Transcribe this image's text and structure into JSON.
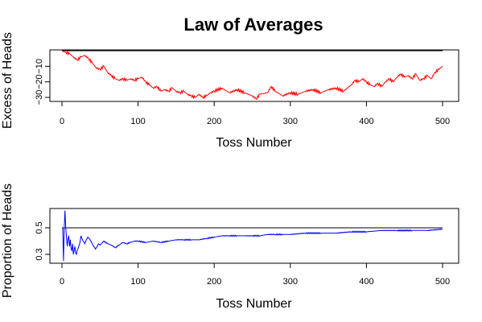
{
  "chart_data": [
    {
      "type": "line",
      "title": "Law of Averages",
      "xlabel": "Toss Number",
      "ylabel": "Excess of Heads",
      "xlim": [
        0,
        500
      ],
      "ylim": [
        -32,
        0
      ],
      "xticks": [
        "0",
        "100",
        "200",
        "300",
        "400",
        "500"
      ],
      "yticks": [
        "−10",
        "−20",
        "−30"
      ],
      "reference_line": 0,
      "reference_color": "#000000",
      "series_color": "#ff0000",
      "keypoints": [
        [
          1,
          -1
        ],
        [
          3,
          0
        ],
        [
          5,
          -1
        ],
        [
          10,
          -2
        ],
        [
          15,
          -4
        ],
        [
          20,
          -6
        ],
        [
          25,
          -4
        ],
        [
          30,
          -3
        ],
        [
          35,
          -5
        ],
        [
          40,
          -8
        ],
        [
          45,
          -11
        ],
        [
          50,
          -12
        ],
        [
          55,
          -10
        ],
        [
          60,
          -14
        ],
        [
          65,
          -16
        ],
        [
          70,
          -18
        ],
        [
          75,
          -19
        ],
        [
          80,
          -18
        ],
        [
          85,
          -19
        ],
        [
          90,
          -18
        ],
        [
          95,
          -19
        ],
        [
          100,
          -18
        ],
        [
          105,
          -17
        ],
        [
          110,
          -20
        ],
        [
          115,
          -22
        ],
        [
          120,
          -24
        ],
        [
          125,
          -23
        ],
        [
          130,
          -26
        ],
        [
          135,
          -25
        ],
        [
          140,
          -26
        ],
        [
          145,
          -24
        ],
        [
          150,
          -26
        ],
        [
          155,
          -27
        ],
        [
          160,
          -26
        ],
        [
          165,
          -28
        ],
        [
          170,
          -29
        ],
        [
          175,
          -30
        ],
        [
          180,
          -28
        ],
        [
          185,
          -30
        ],
        [
          190,
          -29
        ],
        [
          195,
          -27
        ],
        [
          200,
          -26
        ],
        [
          210,
          -24
        ],
        [
          220,
          -27
        ],
        [
          230,
          -25
        ],
        [
          240,
          -27
        ],
        [
          250,
          -29
        ],
        [
          255,
          -31
        ],
        [
          260,
          -28
        ],
        [
          270,
          -27
        ],
        [
          275,
          -23
        ],
        [
          280,
          -26
        ],
        [
          290,
          -29
        ],
        [
          300,
          -27
        ],
        [
          310,
          -28
        ],
        [
          320,
          -26
        ],
        [
          330,
          -25
        ],
        [
          340,
          -27
        ],
        [
          350,
          -25
        ],
        [
          360,
          -24
        ],
        [
          370,
          -26
        ],
        [
          380,
          -22
        ],
        [
          385,
          -19
        ],
        [
          390,
          -20
        ],
        [
          395,
          -18
        ],
        [
          400,
          -20
        ],
        [
          405,
          -22
        ],
        [
          410,
          -23
        ],
        [
          415,
          -21
        ],
        [
          420,
          -23
        ],
        [
          425,
          -20
        ],
        [
          430,
          -18
        ],
        [
          435,
          -20
        ],
        [
          440,
          -17
        ],
        [
          445,
          -15
        ],
        [
          450,
          -17
        ],
        [
          455,
          -16
        ],
        [
          460,
          -18
        ],
        [
          465,
          -15
        ],
        [
          470,
          -19
        ],
        [
          475,
          -18
        ],
        [
          480,
          -16
        ],
        [
          485,
          -18
        ],
        [
          490,
          -14
        ],
        [
          495,
          -12
        ],
        [
          500,
          -10
        ]
      ]
    },
    {
      "type": "line",
      "title": "",
      "xlabel": "Toss Number",
      "ylabel": "Proportion of Heads",
      "xlim": [
        0,
        500
      ],
      "ylim": [
        0.24,
        0.65
      ],
      "xticks": [
        "0",
        "100",
        "200",
        "300",
        "400",
        "500"
      ],
      "yticks": [
        "0.3",
        "0.5"
      ],
      "reference_line": 0.5,
      "reference_color": "#000000",
      "series_color": "#0000ff",
      "keypoints": [
        [
          1,
          0.5
        ],
        [
          2,
          0.25
        ],
        [
          3,
          0.5
        ],
        [
          4,
          0.63
        ],
        [
          5,
          0.5
        ],
        [
          6,
          0.42
        ],
        [
          7,
          0.36
        ],
        [
          8,
          0.42
        ],
        [
          9,
          0.44
        ],
        [
          10,
          0.36
        ],
        [
          11,
          0.41
        ],
        [
          12,
          0.34
        ],
        [
          13,
          0.33
        ],
        [
          14,
          0.38
        ],
        [
          15,
          0.3
        ],
        [
          16,
          0.33
        ],
        [
          17,
          0.36
        ],
        [
          18,
          0.31
        ],
        [
          19,
          0.3
        ],
        [
          20,
          0.33
        ],
        [
          22,
          0.36
        ],
        [
          24,
          0.4
        ],
        [
          25,
          0.44
        ],
        [
          27,
          0.41
        ],
        [
          30,
          0.38
        ],
        [
          32,
          0.41
        ],
        [
          34,
          0.43
        ],
        [
          36,
          0.42
        ],
        [
          38,
          0.4
        ],
        [
          40,
          0.38
        ],
        [
          42,
          0.36
        ],
        [
          44,
          0.34
        ],
        [
          46,
          0.36
        ],
        [
          48,
          0.38
        ],
        [
          50,
          0.37
        ],
        [
          55,
          0.4
        ],
        [
          60,
          0.38
        ],
        [
          65,
          0.37
        ],
        [
          70,
          0.35
        ],
        [
          75,
          0.37
        ],
        [
          80,
          0.39
        ],
        [
          85,
          0.38
        ],
        [
          90,
          0.39
        ],
        [
          95,
          0.4
        ],
        [
          100,
          0.4
        ],
        [
          110,
          0.39
        ],
        [
          120,
          0.4
        ],
        [
          130,
          0.39
        ],
        [
          140,
          0.4
        ],
        [
          150,
          0.41
        ],
        [
          160,
          0.41
        ],
        [
          170,
          0.41
        ],
        [
          180,
          0.41
        ],
        [
          190,
          0.42
        ],
        [
          200,
          0.43
        ],
        [
          210,
          0.44
        ],
        [
          220,
          0.44
        ],
        [
          230,
          0.44
        ],
        [
          240,
          0.44
        ],
        [
          250,
          0.44
        ],
        [
          260,
          0.44
        ],
        [
          270,
          0.45
        ],
        [
          280,
          0.45
        ],
        [
          290,
          0.45
        ],
        [
          300,
          0.45
        ],
        [
          320,
          0.46
        ],
        [
          340,
          0.46
        ],
        [
          360,
          0.46
        ],
        [
          380,
          0.47
        ],
        [
          400,
          0.47
        ],
        [
          420,
          0.48
        ],
        [
          440,
          0.48
        ],
        [
          460,
          0.48
        ],
        [
          480,
          0.48
        ],
        [
          500,
          0.49
        ]
      ]
    }
  ]
}
